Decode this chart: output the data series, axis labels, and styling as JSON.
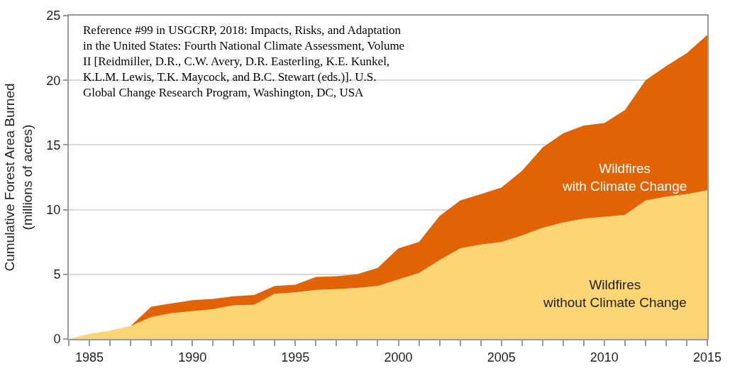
{
  "chart_data": {
    "type": "area",
    "stacked": true,
    "ylabel": "Cumulative Forest Area Burned\n(millions of acres)",
    "x": [
      1984,
      1985,
      1986,
      1987,
      1988,
      1989,
      1990,
      1991,
      1992,
      1993,
      1994,
      1995,
      1996,
      1997,
      1998,
      1999,
      2000,
      2001,
      2002,
      2003,
      2004,
      2005,
      2006,
      2007,
      2008,
      2009,
      2010,
      2011,
      2012,
      2013,
      2014,
      2015
    ],
    "series": [
      {
        "name": "Wildfires\nwithout Climate Change",
        "color": "#fcd574",
        "values": [
          0,
          0.4,
          0.65,
          1.0,
          1.7,
          2.0,
          2.15,
          2.3,
          2.6,
          2.65,
          3.5,
          3.6,
          3.8,
          3.85,
          3.95,
          4.1,
          4.6,
          5.1,
          6.1,
          7.0,
          7.3,
          7.5,
          8.0,
          8.6,
          9.0,
          9.3,
          9.45,
          9.6,
          10.7,
          11.0,
          11.2,
          11.5
        ]
      },
      {
        "name": "Wildfires\nwith Climate Change",
        "color": "#e26304",
        "values": [
          0,
          0,
          0,
          0,
          0.8,
          0.75,
          0.85,
          0.8,
          0.7,
          0.75,
          0.6,
          0.6,
          1.0,
          1.0,
          1.05,
          1.4,
          2.4,
          2.4,
          3.4,
          3.7,
          3.9,
          4.2,
          5.0,
          6.2,
          6.9,
          7.2,
          7.25,
          8.1,
          9.3,
          10.1,
          10.9,
          12.0
        ]
      }
    ],
    "xlim": [
      1984,
      2015
    ],
    "xticks": [
      {
        "value": 1984,
        "label": null
      },
      1985,
      {
        "value": 1986,
        "label": null
      },
      {
        "value": 1987,
        "label": null
      },
      {
        "value": 1988,
        "label": null
      },
      {
        "value": 1989,
        "label": null
      },
      1990,
      {
        "value": 1991,
        "label": null
      },
      {
        "value": 1992,
        "label": null
      },
      {
        "value": 1993,
        "label": null
      },
      {
        "value": 1994,
        "label": null
      },
      1995,
      {
        "value": 1996,
        "label": null
      },
      {
        "value": 1997,
        "label": null
      },
      {
        "value": 1998,
        "label": null
      },
      {
        "value": 1999,
        "label": null
      },
      2000,
      {
        "value": 2001,
        "label": null
      },
      {
        "value": 2002,
        "label": null
      },
      {
        "value": 2003,
        "label": null
      },
      {
        "value": 2004,
        "label": null
      },
      2005,
      {
        "value": 2006,
        "label": null
      },
      {
        "value": 2007,
        "label": null
      },
      {
        "value": 2008,
        "label": null
      },
      {
        "value": 2009,
        "label": null
      },
      2010,
      {
        "value": 2011,
        "label": null
      },
      {
        "value": 2012,
        "label": null
      },
      {
        "value": 2013,
        "label": null
      },
      {
        "value": 2014,
        "label": null
      },
      2015
    ],
    "ylim": [
      0,
      25
    ],
    "yticks": [
      0,
      5,
      10,
      15,
      20,
      25
    ],
    "grid": "y",
    "legend": false,
    "annotations": [
      "Reference #99 in USGCRP, 2018: Impacts, Risks, and Adaptation\nin the United States: Fourth National Climate Assessment, Volume\nII [Reidmiller, D.R., C.W. Avery, D.R. Easterling, K.E. Kunkel,\nK.L.M. Lewis, T.K. Maycock, and B.C. Stewart (eds.)]. U.S.\nGlobal Change Research Program, Washington, DC, USA"
    ]
  }
}
